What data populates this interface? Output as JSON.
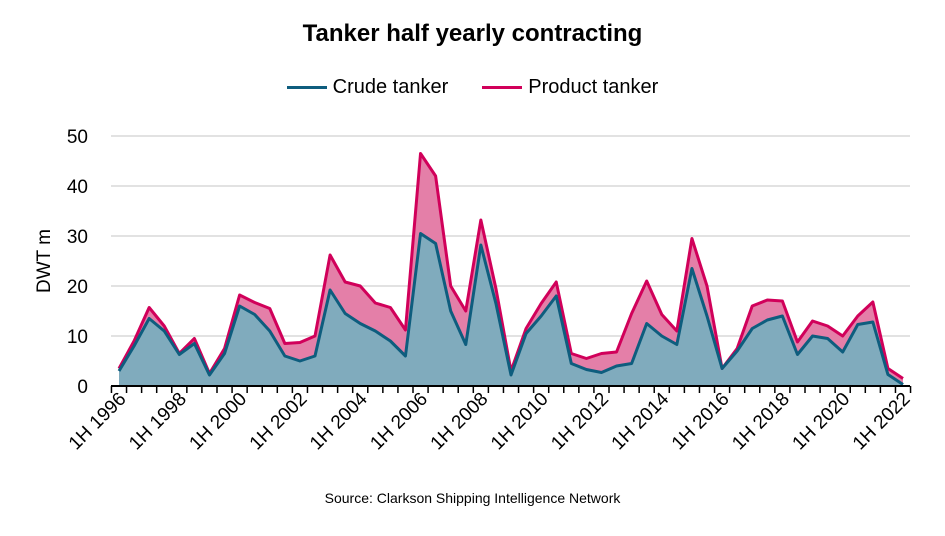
{
  "chart_data": {
    "type": "area",
    "stacked": true,
    "title": "Tanker half yearly contracting",
    "ylabel": "DWT m",
    "xlabel": "",
    "source": "Source: Clarkson Shipping Intelligence Network",
    "ylim": [
      0,
      50
    ],
    "yticks": [
      0,
      10,
      20,
      30,
      40,
      50
    ],
    "grid": true,
    "legend_position": "top",
    "x_tick_labels": [
      "1H 1996",
      "1H 1998",
      "1H 2000",
      "1H 2002",
      "1H 2004",
      "1H 2006",
      "1H 2008",
      "1H 2010",
      "1H 2012",
      "1H 2014",
      "1H 2016",
      "1H 2018",
      "1H 2020",
      "1H 2022"
    ],
    "x": [
      "1H 1996",
      "2H 1996",
      "1H 1997",
      "2H 1997",
      "1H 1998",
      "2H 1998",
      "1H 1999",
      "2H 1999",
      "1H 2000",
      "2H 2000",
      "1H 2001",
      "2H 2001",
      "1H 2002",
      "2H 2002",
      "1H 2003",
      "2H 2003",
      "1H 2004",
      "2H 2004",
      "1H 2005",
      "2H 2005",
      "1H 2006",
      "2H 2006",
      "1H 2007",
      "2H 2007",
      "1H 2008",
      "2H 2008",
      "1H 2009",
      "2H 2009",
      "1H 2010",
      "2H 2010",
      "1H 2011",
      "2H 2011",
      "1H 2012",
      "2H 2012",
      "1H 2013",
      "2H 2013",
      "1H 2014",
      "2H 2014",
      "1H 2015",
      "2H 2015",
      "1H 2016",
      "2H 2016",
      "1H 2017",
      "2H 2017",
      "1H 2018",
      "2H 2018",
      "1H 2019",
      "2H 2019",
      "1H 2020",
      "2H 2020",
      "1H 2021",
      "2H 2021",
      "1H 2022"
    ],
    "series": [
      {
        "name": "Crude tanker",
        "color": "#0e5d7e",
        "fill": "#80abbd",
        "values": [
          3,
          8,
          13.5,
          11,
          6.3,
          8.5,
          2.2,
          6.5,
          16,
          14.3,
          11,
          6,
          5,
          6,
          19.2,
          14.5,
          12.5,
          11,
          9,
          6,
          30.5,
          28.5,
          15,
          8.3,
          28.2,
          16.5,
          2.2,
          10.5,
          14,
          18,
          4.5,
          3.3,
          2.7,
          4,
          4.5,
          12.5,
          10,
          8.3,
          23.5,
          14,
          3.5,
          7,
          11.5,
          13.2,
          14,
          6.3,
          10,
          9.5,
          6.8,
          12.3,
          12.8,
          2.3,
          0.3
        ]
      },
      {
        "name": "Product tanker",
        "color": "#d1005a",
        "fill": "#e47fa8",
        "values": [
          0.5,
          1,
          2.2,
          1,
          0.2,
          1,
          0.3,
          1,
          2.2,
          2.4,
          4.5,
          2.5,
          3.7,
          4,
          7,
          6.3,
          7.5,
          5.6,
          6.7,
          5.2,
          16,
          13.5,
          5,
          6.7,
          5,
          3,
          0.8,
          1,
          2.5,
          2.8,
          2,
          2.2,
          3.8,
          2.8,
          10,
          8.5,
          4.3,
          2.7,
          6,
          6,
          0,
          0.5,
          4.5,
          4,
          3,
          2.5,
          3,
          2.5,
          3.2,
          1.7,
          4,
          1.2,
          1.2
        ]
      }
    ]
  }
}
